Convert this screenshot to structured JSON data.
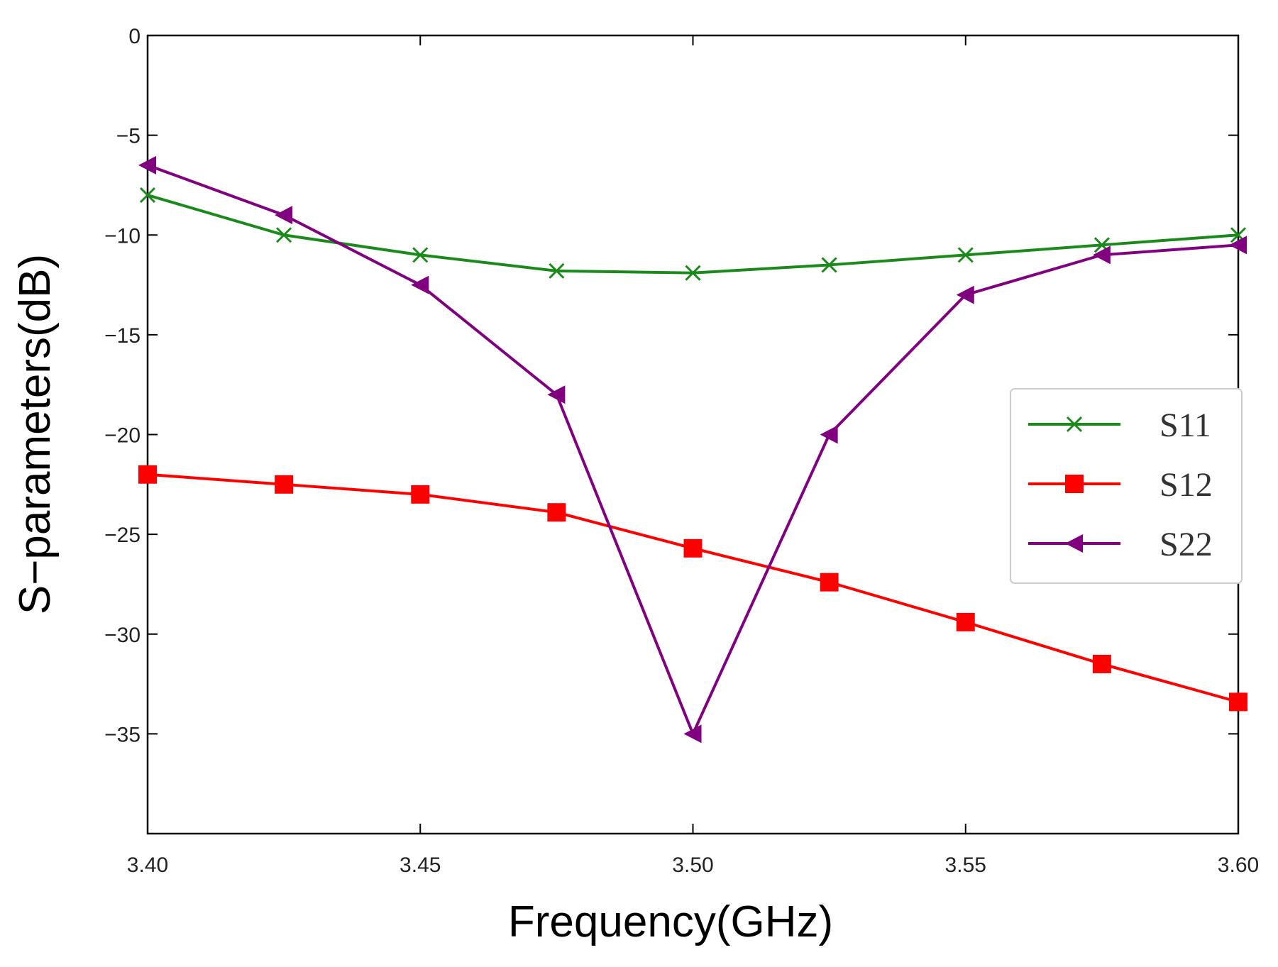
{
  "chart_data": {
    "type": "line",
    "title": "",
    "xlabel": "Frequency(GHz)",
    "ylabel": "S−parameters(dB)",
    "xlim": [
      3.4,
      3.6
    ],
    "ylim": [
      -40,
      0
    ],
    "xticks": [
      3.4,
      3.45,
      3.5,
      3.55,
      3.6
    ],
    "xtick_labels": [
      "3.40",
      "3.45",
      "3.50",
      "3.55",
      "3.60"
    ],
    "yticks": [
      0,
      -5,
      -10,
      -15,
      -20,
      -25,
      -30,
      -35
    ],
    "ytick_labels": [
      "0",
      "−5",
      "−10",
      "−15",
      "−20",
      "−25",
      "−30",
      "−35"
    ],
    "grid": false,
    "legend_position": "right-middle",
    "x": [
      3.4,
      3.425,
      3.45,
      3.475,
      3.5,
      3.525,
      3.55,
      3.575,
      3.6
    ],
    "series": [
      {
        "name": "S11",
        "color": "#1a8a1a",
        "marker": "x-mark",
        "values": [
          -8.0,
          -10.0,
          -11.0,
          -11.8,
          -11.9,
          -11.5,
          -11.0,
          -10.5,
          -10.0
        ]
      },
      {
        "name": "S12",
        "color": "#ff0000",
        "marker": "square",
        "values": [
          -22.0,
          -22.5,
          -23.0,
          -23.9,
          -25.7,
          -27.4,
          -29.4,
          -31.5,
          -33.4
        ]
      },
      {
        "name": "S22",
        "color": "#800080",
        "marker": "left-triangle",
        "values": [
          -6.5,
          -9.0,
          -12.5,
          -18.0,
          -35.0,
          -20.0,
          -13.0,
          -11.0,
          -10.5
        ]
      }
    ]
  }
}
